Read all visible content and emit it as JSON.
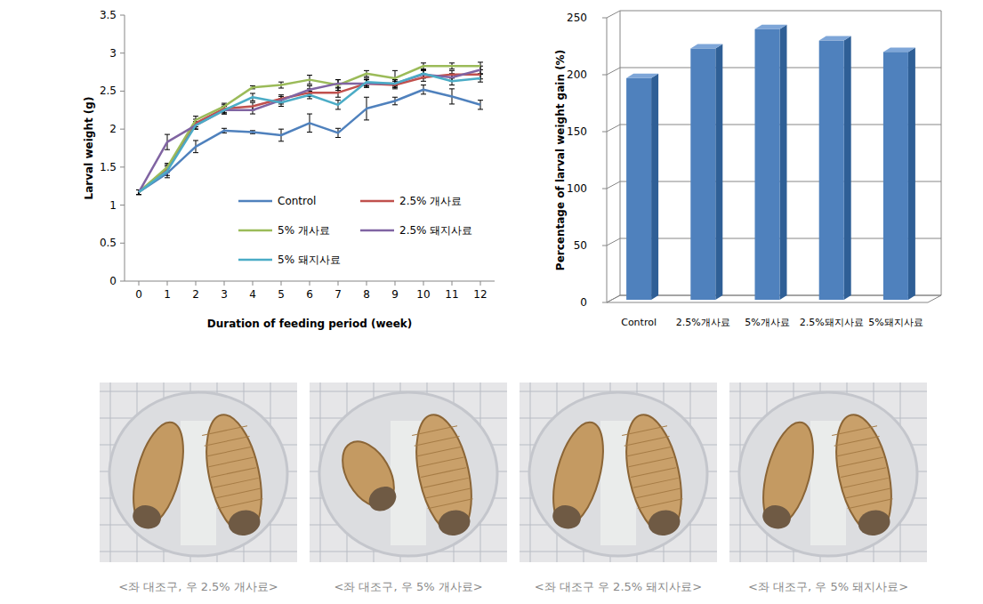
{
  "chart_data": [
    {
      "type": "line",
      "x_label": "Duration of feeding period (week)",
      "y_label": "Larval weight (g)",
      "x": [
        0,
        1,
        2,
        3,
        4,
        5,
        6,
        7,
        8,
        9,
        10,
        11,
        12
      ],
      "xlim": [
        -0.5,
        12.5
      ],
      "xticks": [
        0,
        1,
        2,
        3,
        4,
        5,
        6,
        7,
        8,
        9,
        10,
        11,
        12
      ],
      "ylim": [
        0,
        3.5
      ],
      "yticks": [
        0,
        0.5,
        1,
        1.5,
        2,
        2.5,
        3,
        3.5
      ],
      "grid": false,
      "series": [
        {
          "name": "Control",
          "color": "#4f81bd",
          "values": [
            1.17,
            1.42,
            1.77,
            1.98,
            1.96,
            1.92,
            2.08,
            1.95,
            2.27,
            2.37,
            2.52,
            2.43,
            2.32
          ],
          "errors": [
            0.03,
            0.06,
            0.08,
            0.03,
            0.02,
            0.08,
            0.12,
            0.06,
            0.15,
            0.05,
            0.06,
            0.1,
            0.06
          ]
        },
        {
          "name": "2.5% 개사료",
          "color": "#c0504d",
          "values": [
            1.17,
            1.48,
            2.08,
            2.27,
            2.3,
            2.4,
            2.48,
            2.48,
            2.6,
            2.58,
            2.68,
            2.72,
            2.72
          ],
          "errors": [
            0.03,
            0.05,
            0.05,
            0.05,
            0.05,
            0.05,
            0.05,
            0.06,
            0.05,
            0.05,
            0.05,
            0.05,
            0.06
          ]
        },
        {
          "name": "5% 개사료",
          "color": "#9bbb59",
          "values": [
            1.17,
            1.5,
            2.12,
            2.3,
            2.55,
            2.58,
            2.65,
            2.58,
            2.73,
            2.67,
            2.83,
            2.83,
            2.83
          ],
          "errors": [
            0.03,
            0.05,
            0.05,
            0.04,
            0.02,
            0.04,
            0.06,
            0.07,
            0.04,
            0.1,
            0.04,
            0.04,
            0.05
          ]
        },
        {
          "name": "2.5% 돼지사료",
          "color": "#8064a2",
          "values": [
            1.17,
            1.83,
            2.05,
            2.25,
            2.25,
            2.38,
            2.52,
            2.6,
            2.6,
            2.6,
            2.72,
            2.68,
            2.78
          ],
          "errors": [
            0.03,
            0.1,
            0.05,
            0.05,
            0.05,
            0.05,
            0.05,
            0.05,
            0.05,
            0.05,
            0.05,
            0.05,
            0.05
          ]
        },
        {
          "name": "5% 돼지사료",
          "color": "#4bacc6",
          "values": [
            1.17,
            1.45,
            2.05,
            2.25,
            2.42,
            2.35,
            2.45,
            2.32,
            2.62,
            2.6,
            2.73,
            2.63,
            2.67
          ],
          "errors": [
            0.03,
            0.06,
            0.05,
            0.05,
            0.05,
            0.05,
            0.05,
            0.06,
            0.05,
            0.05,
            0.05,
            0.05,
            0.05
          ]
        }
      ]
    },
    {
      "type": "bar",
      "y_label": "Percentage of larval weight gain (%)",
      "categories": [
        "Control",
        "2.5%개사료",
        "5%개사료",
        "2.5%돼지사료",
        "5%돼지사료"
      ],
      "values": [
        197,
        223,
        240,
        230,
        220
      ],
      "color": "#4f81bd",
      "ylim": [
        0,
        250
      ],
      "yticks": [
        0,
        50,
        100,
        150,
        200,
        250
      ],
      "grid": true
    }
  ],
  "photos": [
    {
      "caption": "<좌 대조구, 우 2.5% 개사료>"
    },
    {
      "caption": "<좌 대조구, 우 5% 개사료>"
    },
    {
      "caption": "<좌 대조구 우 2.5% 돼지사료>"
    },
    {
      "caption": "<좌 대조구, 우 5% 돼지사료>"
    }
  ]
}
